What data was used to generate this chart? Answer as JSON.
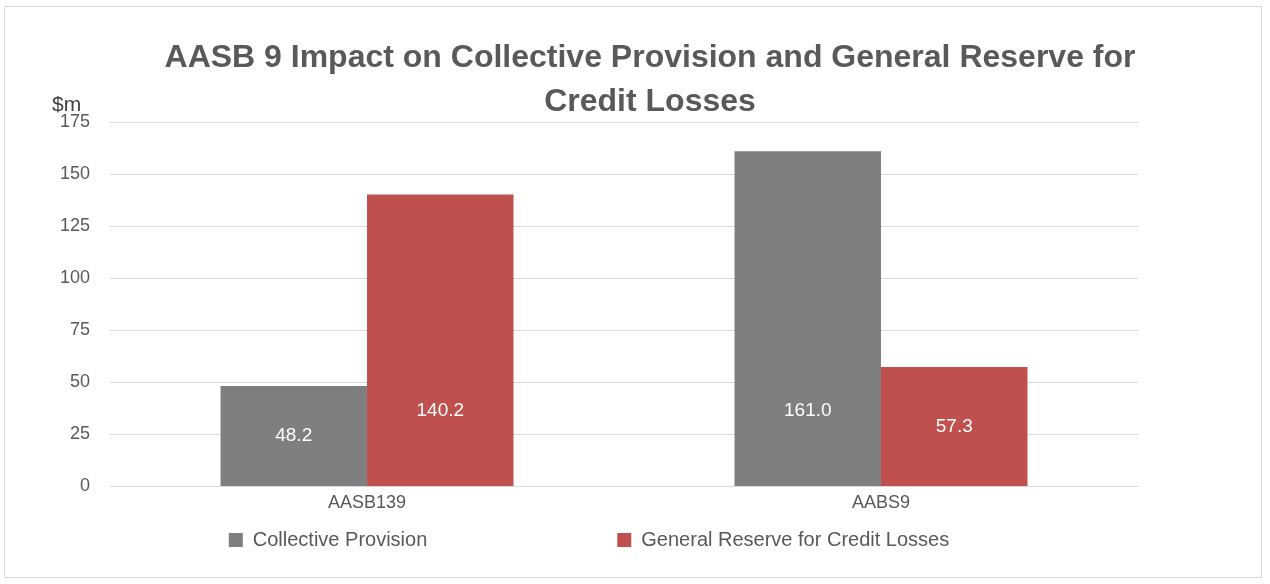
{
  "chart_data": {
    "type": "bar",
    "title": "AASB 9 Impact on Collective Provision and General Reserve for Credit Losses",
    "ylabel": "$m",
    "categories": [
      "AASB139",
      "AABS9"
    ],
    "series": [
      {
        "name": "Collective Provision",
        "color": "#7f7f7f",
        "values": [
          48.2,
          161.0
        ],
        "value_labels": [
          "48.2",
          "161.0"
        ]
      },
      {
        "name": "General Reserve for Credit Losses",
        "color": "#c0504d",
        "values": [
          140.2,
          57.3
        ],
        "value_labels": [
          "140.2",
          "57.3"
        ]
      }
    ],
    "ylim": [
      0,
      175
    ],
    "yticks": [
      0,
      25,
      50,
      75,
      100,
      125,
      150,
      175
    ],
    "grid": "y",
    "legend": "bottom"
  }
}
